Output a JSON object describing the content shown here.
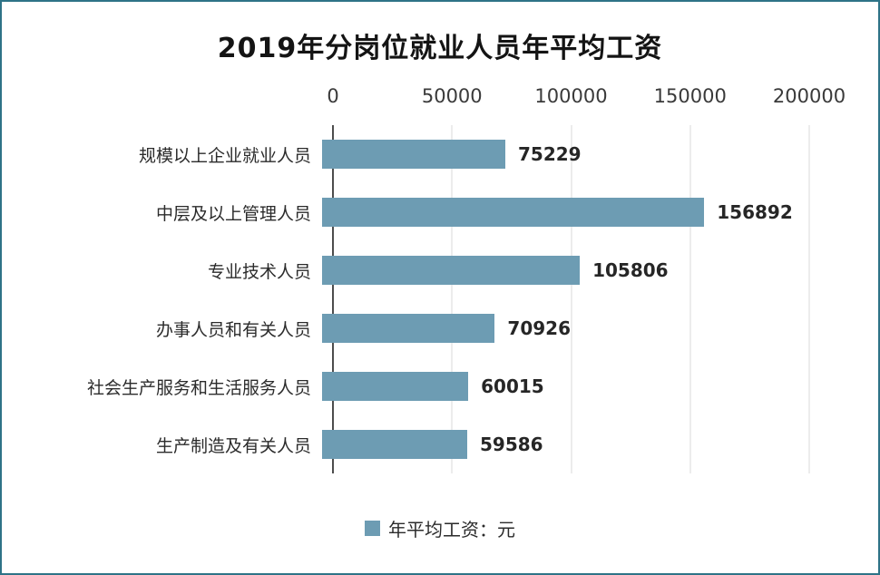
{
  "chart": {
    "title": "2019年分岗位就业人员年平均工资",
    "legend_label": "年平均工资：元"
  },
  "chart_data": {
    "type": "bar",
    "orientation": "horizontal",
    "title": "2019年分岗位就业人员年平均工资",
    "categories": [
      "规模以上企业就业人员",
      "中层及以上管理人员",
      "专业技术人员",
      "办事人员和有关人员",
      "社会生产服务和生活服务人员",
      "生产制造及有关人员"
    ],
    "values": [
      75229,
      156892,
      105806,
      70926,
      60015,
      59586
    ],
    "xlabel": "",
    "ylabel": "",
    "xlim": [
      0,
      200000
    ],
    "xticks": [
      0,
      50000,
      100000,
      150000,
      200000
    ],
    "grid": true,
    "legend": [
      "年平均工资：元"
    ],
    "legend_position": "bottom",
    "bar_color": "#6d9cb3",
    "axis_color": "#4d4d4d",
    "gridline_color": "#d9d9d9"
  }
}
